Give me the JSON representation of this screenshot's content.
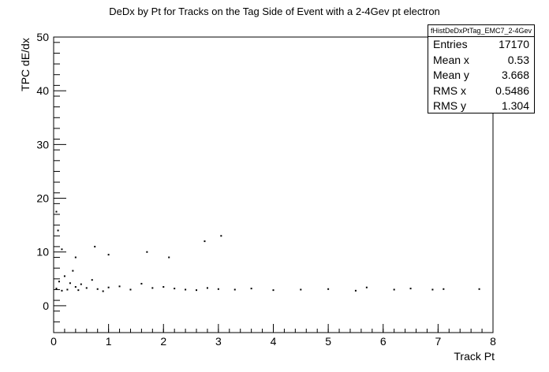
{
  "chart_data": {
    "type": "scatter",
    "title": "DeDx by Pt for Tracks on the Tag Side of Event with a 2-4Gev pt electron",
    "xlabel": "Track Pt",
    "ylabel": "TPC dE/dx",
    "xlim": [
      0,
      8
    ],
    "ylim": [
      -5,
      50
    ],
    "x_ticks": [
      0,
      1,
      2,
      3,
      4,
      5,
      6,
      7,
      8
    ],
    "y_ticks": [
      0,
      10,
      20,
      30,
      40,
      50
    ],
    "grid": false,
    "stats_box": {
      "name": "fHistDeDxPtTag_EMC7_2-4Gev",
      "entries": [
        {
          "label": "Entries",
          "value": "17170"
        },
        {
          "label": "Mean x",
          "value": "0.53"
        },
        {
          "label": "Mean y",
          "value": "3.668"
        },
        {
          "label": "RMS x",
          "value": "0.5486"
        },
        {
          "label": "RMS y",
          "value": "1.304"
        }
      ]
    },
    "series": [
      {
        "values": [
          [
            0.05,
            3.2
          ],
          [
            0.1,
            4.5
          ],
          [
            0.15,
            2.8
          ],
          [
            0.2,
            5.5
          ],
          [
            0.25,
            3.0
          ],
          [
            0.3,
            4.2
          ],
          [
            0.35,
            6.5
          ],
          [
            0.4,
            3.5
          ],
          [
            0.45,
            2.9
          ],
          [
            0.5,
            4.0
          ],
          [
            0.6,
            3.3
          ],
          [
            0.7,
            4.8
          ],
          [
            0.8,
            3.1
          ],
          [
            0.9,
            2.7
          ],
          [
            1.0,
            3.4
          ],
          [
            1.2,
            3.6
          ],
          [
            1.4,
            3.0
          ],
          [
            1.6,
            4.1
          ],
          [
            1.8,
            3.3
          ],
          [
            2.0,
            3.5
          ],
          [
            2.2,
            3.2
          ],
          [
            2.4,
            3.0
          ],
          [
            2.6,
            2.9
          ],
          [
            2.8,
            3.3
          ],
          [
            3.0,
            3.1
          ],
          [
            3.3,
            3.0
          ],
          [
            3.6,
            3.2
          ],
          [
            4.0,
            2.9
          ],
          [
            4.5,
            3.0
          ],
          [
            5.0,
            3.1
          ],
          [
            5.5,
            2.8
          ],
          [
            5.7,
            3.4
          ],
          [
            6.2,
            3.0
          ],
          [
            6.5,
            3.2
          ],
          [
            6.9,
            3.0
          ],
          [
            7.1,
            3.1
          ],
          [
            7.75,
            3.1
          ],
          [
            0.08,
            14.0
          ],
          [
            0.15,
            10.5
          ],
          [
            0.05,
            17.5
          ],
          [
            0.75,
            11.0
          ],
          [
            1.0,
            9.5
          ],
          [
            2.1,
            9.0
          ],
          [
            2.75,
            12.0
          ],
          [
            3.05,
            13.0
          ],
          [
            1.7,
            10.0
          ],
          [
            0.4,
            9.0
          ]
        ]
      }
    ]
  }
}
